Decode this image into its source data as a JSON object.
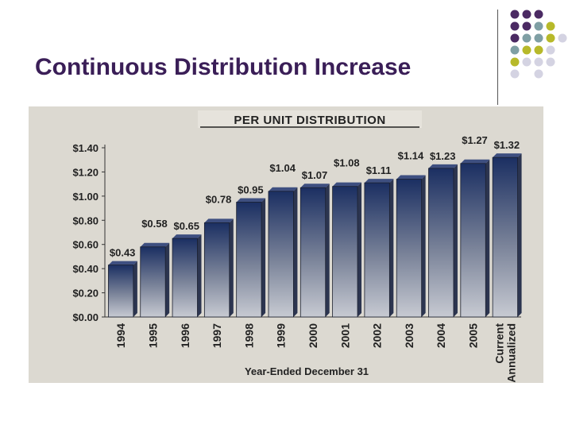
{
  "slide": {
    "title": "Continuous Distribution Increase",
    "accent_colors": {
      "title": "#3a1e57",
      "dot_purple": "#4b2a63",
      "dot_teal": "#7f9fa4",
      "dot_olive": "#b7b92a",
      "dot_lavender": "#d4d3e2"
    }
  },
  "chart_data": {
    "type": "bar",
    "title": "PER UNIT DISTRIBUTION",
    "xlabel": "Year-Ended December 31",
    "ylabel": "",
    "categories": [
      "1994",
      "1995",
      "1996",
      "1997",
      "1998",
      "1999",
      "2000",
      "2001",
      "2002",
      "2003",
      "2004",
      "2005",
      "Current Annualized"
    ],
    "category_labels": [
      [
        "1994"
      ],
      [
        "1995"
      ],
      [
        "1996"
      ],
      [
        "1997"
      ],
      [
        "1998"
      ],
      [
        "1999"
      ],
      [
        "2000"
      ],
      [
        "2001"
      ],
      [
        "2002"
      ],
      [
        "2003"
      ],
      [
        "2004"
      ],
      [
        "2005"
      ],
      [
        "Current",
        "Annualized"
      ]
    ],
    "values": [
      0.43,
      0.58,
      0.65,
      0.78,
      0.95,
      1.04,
      1.07,
      1.08,
      1.11,
      1.14,
      1.23,
      1.27,
      1.32
    ],
    "value_labels": [
      "$0.43",
      "$0.58",
      "$0.65",
      "$0.78",
      "$0.95",
      "$1.04",
      "$1.07",
      "$1.08",
      "$1.11",
      "$1.14",
      "$1.23",
      "$1.27",
      "$1.32"
    ],
    "y_ticks": [
      0,
      0.2,
      0.4,
      0.6,
      0.8,
      1.0,
      1.2,
      1.4
    ],
    "y_tick_labels": [
      "$0.00",
      "$0.20",
      "$0.40",
      "$0.60",
      "$0.80",
      "$1.00",
      "$1.20",
      "$1.40"
    ],
    "ylim": [
      0,
      1.4
    ],
    "grid": false,
    "legend": "none",
    "colors": {
      "bar_top": "#1b2f62",
      "bar_bottom": "#c7cad2",
      "panel_background": "#dcd9d1",
      "text": "#222222"
    }
  }
}
